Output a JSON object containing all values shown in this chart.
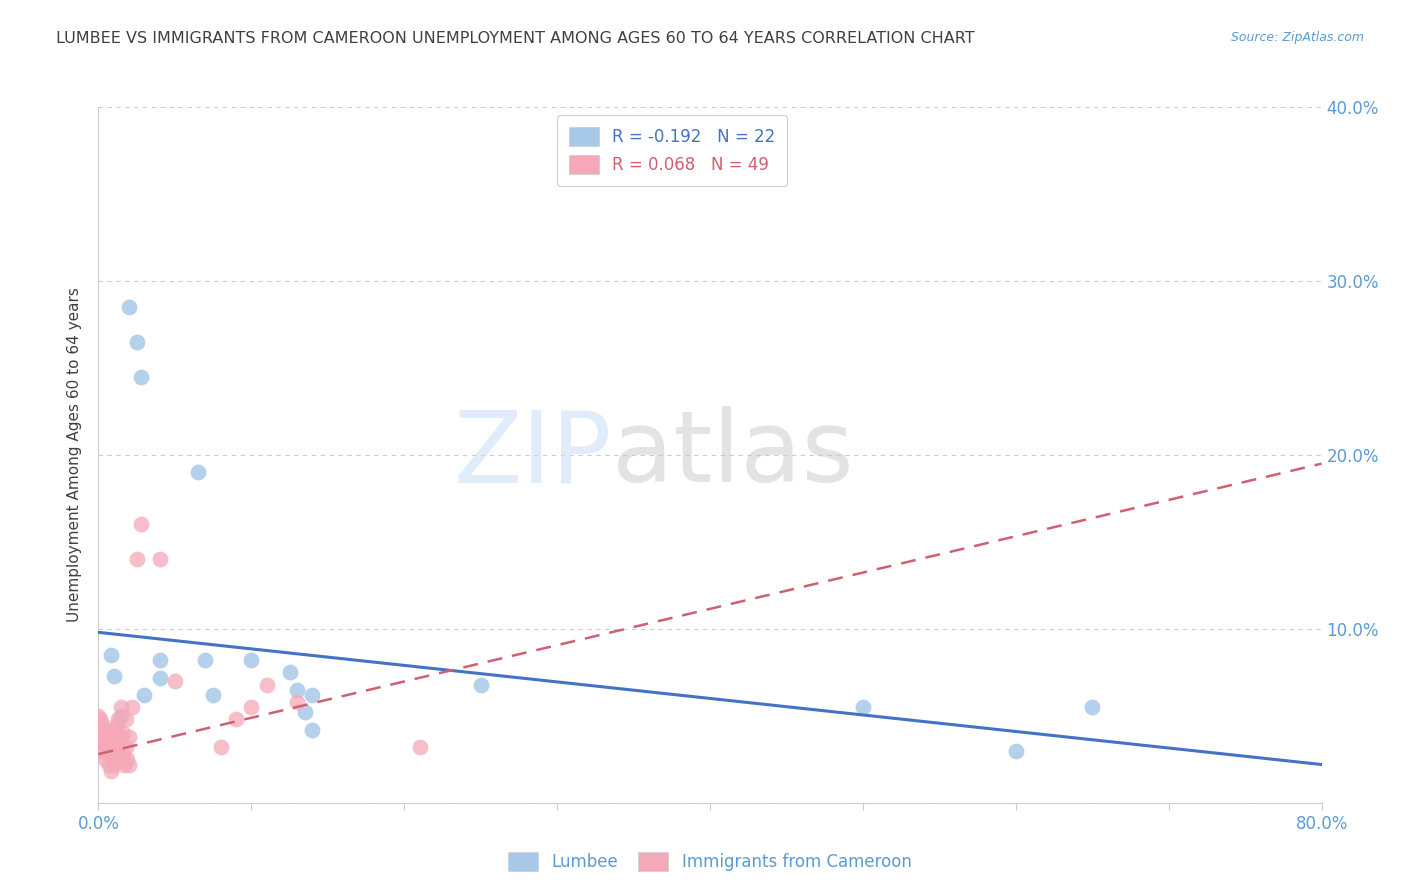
{
  "title": "LUMBEE VS IMMIGRANTS FROM CAMEROON UNEMPLOYMENT AMONG AGES 60 TO 64 YEARS CORRELATION CHART",
  "source": "Source: ZipAtlas.com",
  "ylabel": "Unemployment Among Ages 60 to 64 years",
  "xlim": [
    0.0,
    0.8
  ],
  "ylim": [
    0.0,
    0.4
  ],
  "xticks": [
    0.0,
    0.1,
    0.2,
    0.3,
    0.4,
    0.5,
    0.6,
    0.7,
    0.8
  ],
  "yticks": [
    0.0,
    0.1,
    0.2,
    0.3,
    0.4
  ],
  "ytick_labels": [
    "",
    "10.0%",
    "20.0%",
    "30.0%",
    "40.0%"
  ],
  "xtick_labels_show": [
    "0.0%",
    "80.0%"
  ],
  "lumbee_R": -0.192,
  "lumbee_N": 22,
  "cameroon_R": 0.068,
  "cameroon_N": 49,
  "lumbee_color": "#a8c8e8",
  "cameroon_color": "#f4a8b8",
  "lumbee_line_color": "#4472c4",
  "cameroon_line_color": "#d06070",
  "background_color": "#ffffff",
  "title_color": "#404040",
  "axis_label_color": "#5b9bd5",
  "grid_color": "#cccccc",
  "lumbee_x": [
    0.008,
    0.01,
    0.015,
    0.02,
    0.025,
    0.028,
    0.03,
    0.04,
    0.04,
    0.065,
    0.07,
    0.075,
    0.1,
    0.125,
    0.13,
    0.135,
    0.14,
    0.14,
    0.25,
    0.5,
    0.6,
    0.65
  ],
  "lumbee_y": [
    0.085,
    0.073,
    0.05,
    0.285,
    0.265,
    0.245,
    0.062,
    0.082,
    0.072,
    0.19,
    0.082,
    0.062,
    0.082,
    0.075,
    0.065,
    0.052,
    0.042,
    0.062,
    0.068,
    0.055,
    0.03,
    0.055
  ],
  "cameroon_x": [
    0.0,
    0.0,
    0.0,
    0.001,
    0.001,
    0.002,
    0.003,
    0.003,
    0.004,
    0.004,
    0.005,
    0.005,
    0.006,
    0.006,
    0.007,
    0.007,
    0.008,
    0.008,
    0.009,
    0.009,
    0.01,
    0.01,
    0.01,
    0.012,
    0.012,
    0.013,
    0.013,
    0.014,
    0.015,
    0.015,
    0.016,
    0.016,
    0.017,
    0.018,
    0.018,
    0.019,
    0.02,
    0.02,
    0.022,
    0.025,
    0.028,
    0.04,
    0.05,
    0.08,
    0.09,
    0.1,
    0.11,
    0.13,
    0.21
  ],
  "cameroon_y": [
    0.035,
    0.042,
    0.05,
    0.038,
    0.048,
    0.03,
    0.035,
    0.045,
    0.025,
    0.038,
    0.03,
    0.042,
    0.028,
    0.038,
    0.022,
    0.032,
    0.018,
    0.028,
    0.025,
    0.038,
    0.022,
    0.03,
    0.042,
    0.028,
    0.045,
    0.032,
    0.048,
    0.025,
    0.038,
    0.055,
    0.028,
    0.04,
    0.022,
    0.032,
    0.048,
    0.025,
    0.022,
    0.038,
    0.055,
    0.14,
    0.16,
    0.14,
    0.07,
    0.032,
    0.048,
    0.055,
    0.068,
    0.058,
    0.032
  ],
  "lumbee_trend": [
    0.098,
    0.022
  ],
  "cameroon_trend": [
    0.028,
    0.195
  ]
}
